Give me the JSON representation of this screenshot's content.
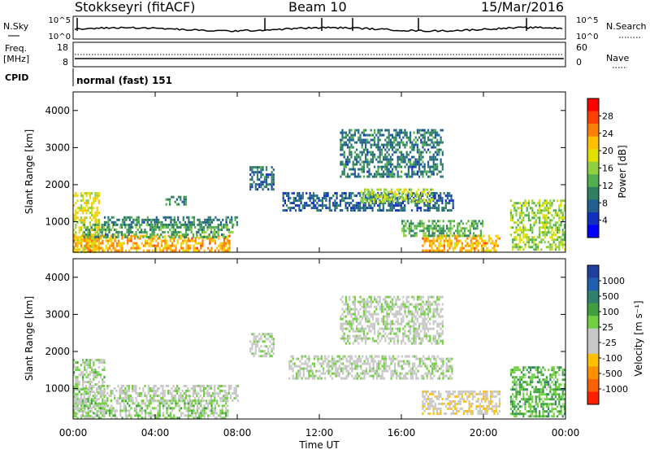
{
  "header": {
    "site": "Stokkseyri (fitACF)",
    "beam": "Beam 10",
    "date": "15/Mar/2016"
  },
  "noise_panel": {
    "left_label": "N.Sky",
    "left_ticks": [
      "10^5",
      "10^0"
    ],
    "right_label": "N.Search",
    "right_ticks": [
      "10^5",
      "10^0"
    ]
  },
  "freq_panel": {
    "left_label_line1": "Freq.",
    "left_label_line2": "[MHz]",
    "left_ticks": [
      "18",
      "8"
    ],
    "right_label": "Nave",
    "right_ticks": [
      "60",
      "0"
    ]
  },
  "cpid_panel": {
    "label": "CPID",
    "text": "normal (fast) 151"
  },
  "colorbars": {
    "power": {
      "label": "Power [dB]",
      "ticks": [
        "28",
        "24",
        "20",
        "16",
        "12",
        "8",
        "4"
      ],
      "colors": [
        "#ff0000",
        "#ff4000",
        "#ff8000",
        "#ffc000",
        "#e0e000",
        "#90d040",
        "#50b050",
        "#308060",
        "#206090",
        "#1030c0",
        "#0000ff"
      ]
    },
    "velocity": {
      "label": "Velocity [m s⁻¹]",
      "ticks": [
        "1000",
        "500",
        "100",
        "25",
        "-25",
        "-100",
        "-500",
        "-1000"
      ],
      "colors": [
        "#2040a0",
        "#2060b0",
        "#308070",
        "#40a040",
        "#70d040",
        "#c8c8c8",
        "#c8c8c8",
        "#ffc000",
        "#ff9000",
        "#ff6000",
        "#ff2000"
      ]
    }
  },
  "chart_data": [
    {
      "type": "heatmap",
      "title": "",
      "xlabel": "Time UT",
      "ylabel": "Slant Range [km]",
      "value_label": "Power [dB]",
      "xlim": [
        0,
        24
      ],
      "ylim": [
        180,
        4500
      ],
      "x_ticks": [
        "00:00",
        "04:00",
        "08:00",
        "12:00",
        "16:00",
        "20:00",
        "00:00"
      ],
      "y_ticks": [
        1000,
        2000,
        3000,
        4000
      ],
      "clim": [
        0,
        30
      ],
      "regions": [
        {
          "t": [
            0.0,
            1.3
          ],
          "r": [
            200,
            1800
          ],
          "v": 18
        },
        {
          "t": [
            0.0,
            7.6
          ],
          "r": [
            200,
            650
          ],
          "v": 22
        },
        {
          "t": [
            0.5,
            7.8
          ],
          "r": [
            600,
            950
          ],
          "v": 11
        },
        {
          "t": [
            1.5,
            8.0
          ],
          "r": [
            950,
            1150
          ],
          "v": 8
        },
        {
          "t": [
            4.5,
            5.5
          ],
          "r": [
            1500,
            1700
          ],
          "v": 9
        },
        {
          "t": [
            8.6,
            9.8
          ],
          "r": [
            1900,
            2500
          ],
          "v": 7
        },
        {
          "t": [
            10.2,
            18.5
          ],
          "r": [
            1300,
            1800
          ],
          "v": 6
        },
        {
          "t": [
            14.0,
            17.5
          ],
          "r": [
            1550,
            1900
          ],
          "v": 16
        },
        {
          "t": [
            13.0,
            18.0
          ],
          "r": [
            2200,
            3500
          ],
          "v": 8
        },
        {
          "t": [
            17.0,
            20.8
          ],
          "r": [
            200,
            650
          ],
          "v": 22
        },
        {
          "t": [
            16.0,
            20.0
          ],
          "r": [
            650,
            1050
          ],
          "v": 12
        },
        {
          "t": [
            21.3,
            24.0
          ],
          "r": [
            250,
            1600
          ],
          "v": 15
        }
      ]
    },
    {
      "type": "heatmap",
      "title": "",
      "xlabel": "Time UT",
      "ylabel": "Slant Range [km]",
      "value_label": "Velocity [m s⁻¹]",
      "xlim": [
        0,
        24
      ],
      "ylim": [
        180,
        4500
      ],
      "x_ticks": [
        "00:00",
        "04:00",
        "08:00",
        "12:00",
        "16:00",
        "20:00",
        "00:00"
      ],
      "y_ticks": [
        1000,
        2000,
        3000,
        4000
      ],
      "clim": [
        -1000,
        1000
      ],
      "regions": [
        {
          "t": [
            0.0,
            1.5
          ],
          "r": [
            250,
            1800
          ],
          "v": 80
        },
        {
          "t": [
            0.0,
            7.5
          ],
          "r": [
            200,
            700
          ],
          "v": 120
        },
        {
          "t": [
            0.5,
            8.0
          ],
          "r": [
            700,
            1100
          ],
          "v": 0
        },
        {
          "t": [
            8.6,
            9.8
          ],
          "r": [
            1900,
            2500
          ],
          "v": 0
        },
        {
          "t": [
            10.5,
            18.5
          ],
          "r": [
            1300,
            1900
          ],
          "v": 0
        },
        {
          "t": [
            13.0,
            18.0
          ],
          "r": [
            2200,
            3500
          ],
          "v": 0
        },
        {
          "t": [
            17.0,
            20.8
          ],
          "r": [
            300,
            950
          ],
          "v": -200
        },
        {
          "t": [
            21.3,
            24.0
          ],
          "r": [
            250,
            1600
          ],
          "v": 300
        }
      ]
    }
  ]
}
